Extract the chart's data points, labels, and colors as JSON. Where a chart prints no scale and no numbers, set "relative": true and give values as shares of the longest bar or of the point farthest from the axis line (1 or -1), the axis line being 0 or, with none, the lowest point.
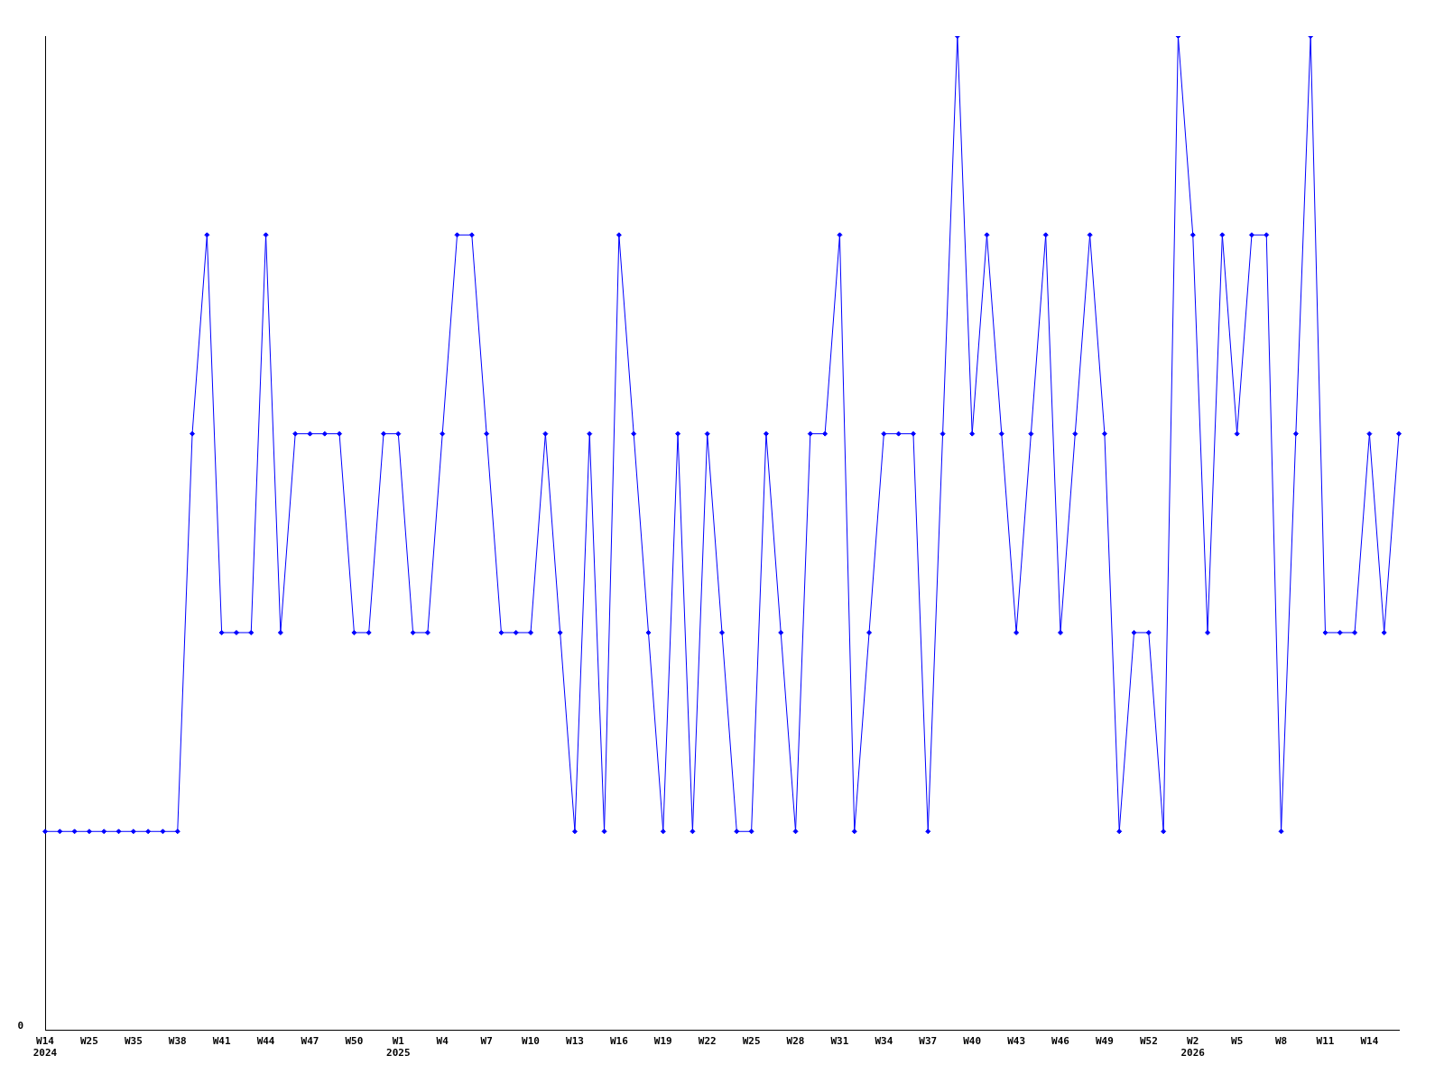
{
  "chart_data": {
    "type": "line",
    "relative": true,
    "categories": [
      "W14\n2024",
      null,
      null,
      "W25",
      null,
      null,
      "W35",
      null,
      null,
      "W38",
      null,
      null,
      "W41",
      null,
      null,
      "W44",
      null,
      null,
      "W47",
      null,
      null,
      "W50",
      null,
      null,
      "W1\n2025",
      null,
      null,
      "W4",
      null,
      null,
      "W7",
      null,
      null,
      "W10",
      null,
      null,
      "W13",
      null,
      null,
      "W16",
      null,
      null,
      "W19",
      null,
      null,
      "W22",
      null,
      null,
      "W25",
      null,
      null,
      "W28",
      null,
      null,
      "W31",
      null,
      null,
      "W34",
      null,
      null,
      "W37",
      null,
      null,
      "W40",
      null,
      null,
      "W43",
      null,
      null,
      "W46",
      null,
      null,
      "W49",
      null,
      null,
      "W52",
      null,
      null,
      "W2\n2026",
      null,
      null,
      "W5",
      null,
      null,
      "W8",
      null,
      null,
      "W11",
      null,
      null,
      "W14",
      null,
      null
    ],
    "series": [
      {
        "color": "#0000ff",
        "values": [
          0.2,
          0.2,
          0.2,
          0.2,
          0.2,
          0.2,
          0.2,
          0.2,
          0.2,
          0.2,
          0.6,
          0.8,
          0.4,
          0.4,
          0.4,
          0.8,
          0.4,
          0.6,
          0.6,
          0.6,
          0.6,
          0.4,
          0.4,
          0.6,
          0.6,
          0.4,
          0.4,
          0.6,
          0.8,
          0.8,
          0.6,
          0.4,
          0.4,
          0.4,
          0.6,
          0.4,
          0.2,
          0.6,
          0.2,
          0.8,
          0.6,
          0.4,
          0.2,
          0.6,
          0.2,
          0.6,
          0.4,
          0.2,
          0.2,
          0.6,
          0.4,
          0.2,
          0.6,
          0.6,
          0.8,
          0.2,
          0.4,
          0.6,
          0.6,
          0.6,
          0.2,
          0.6,
          1,
          0.6,
          0.8,
          0.6,
          0.4,
          0.6,
          0.8,
          0.4,
          0.6,
          0.8,
          0.6,
          0.2,
          0.4,
          0.4,
          0.2,
          1,
          0.8,
          0.4,
          0.8,
          0.6,
          0.8,
          0.8,
          0.2,
          0.6,
          1,
          0.4,
          0.4,
          0.4,
          0.6,
          0.4,
          0.6
        ]
      }
    ],
    "marker": "diamond",
    "line_style": "solid",
    "grid": false,
    "legend": false,
    "annotations": [
      "0"
    ]
  }
}
